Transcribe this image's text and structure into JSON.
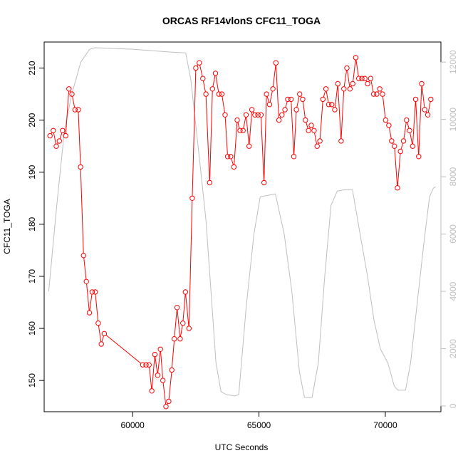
{
  "chart_data": {
    "type": "line",
    "title": "ORCAS RF14vlonS CFC11_TOGA",
    "xlabel": "UTC Seconds",
    "ylabel": "CFC11_TOGA",
    "ylabel_right": "",
    "xlim": [
      56500,
      72200
    ],
    "ylim": [
      144,
      215
    ],
    "ylim_right": [
      -200,
      12700
    ],
    "x_ticks": [
      60000,
      65000,
      70000
    ],
    "y_ticks": [
      150,
      160,
      170,
      180,
      190,
      200,
      210
    ],
    "y_ticks_right": [
      0,
      2000,
      4000,
      6000,
      8000,
      10000,
      12000
    ],
    "colors": {
      "series": "#ff0000",
      "altitude": "#bebebe",
      "axis": "#000000"
    },
    "series": [
      {
        "values": [
          [
            56730,
            197
          ],
          [
            56860,
            198
          ],
          [
            56980,
            195
          ],
          [
            57100,
            196
          ],
          [
            57230,
            198
          ],
          [
            57350,
            197
          ],
          [
            57480,
            206
          ],
          [
            57600,
            205
          ],
          [
            57720,
            202
          ],
          [
            57850,
            202
          ],
          [
            57940,
            191
          ],
          [
            58060,
            174
          ],
          [
            58170,
            169
          ],
          [
            58290,
            163
          ],
          [
            58400,
            167
          ],
          [
            58520,
            167
          ],
          [
            58640,
            161
          ],
          [
            58760,
            157
          ],
          [
            58880,
            159
          ],
          [
            60400,
            153
          ],
          [
            60530,
            153
          ],
          [
            60650,
            153
          ],
          [
            60760,
            148
          ],
          [
            60880,
            155
          ],
          [
            60990,
            151
          ],
          [
            61100,
            156
          ],
          [
            61200,
            150
          ],
          [
            61320,
            145
          ],
          [
            61430,
            146
          ],
          [
            61550,
            152
          ],
          [
            61650,
            158
          ],
          [
            61760,
            164
          ],
          [
            61880,
            158
          ],
          [
            61990,
            161
          ],
          [
            62090,
            167
          ],
          [
            62230,
            160
          ],
          [
            62360,
            185
          ],
          [
            62500,
            210
          ],
          [
            62640,
            211
          ],
          [
            62780,
            208
          ],
          [
            62900,
            205
          ],
          [
            63050,
            188
          ],
          [
            63160,
            206
          ],
          [
            63280,
            209
          ],
          [
            63410,
            205
          ],
          [
            63530,
            205
          ],
          [
            63660,
            201
          ],
          [
            63760,
            193
          ],
          [
            63880,
            193
          ],
          [
            64010,
            191
          ],
          [
            64140,
            200
          ],
          [
            64250,
            198
          ],
          [
            64370,
            198
          ],
          [
            64490,
            201
          ],
          [
            64610,
            195
          ],
          [
            64720,
            202
          ],
          [
            64840,
            201
          ],
          [
            64960,
            201
          ],
          [
            65080,
            201
          ],
          [
            65200,
            188
          ],
          [
            65300,
            205
          ],
          [
            65420,
            203
          ],
          [
            65550,
            206
          ],
          [
            65670,
            211
          ],
          [
            65790,
            200
          ],
          [
            65910,
            201
          ],
          [
            66030,
            202
          ],
          [
            66140,
            204
          ],
          [
            66270,
            204
          ],
          [
            66380,
            193
          ],
          [
            66480,
            202
          ],
          [
            66610,
            205
          ],
          [
            66730,
            204
          ],
          [
            66840,
            200
          ],
          [
            66960,
            198
          ],
          [
            67070,
            199
          ],
          [
            67180,
            198
          ],
          [
            67300,
            195
          ],
          [
            67410,
            196
          ],
          [
            67530,
            204
          ],
          [
            67650,
            206
          ],
          [
            67760,
            203
          ],
          [
            67880,
            203
          ],
          [
            68000,
            202
          ],
          [
            68120,
            207
          ],
          [
            68250,
            196
          ],
          [
            68360,
            206
          ],
          [
            68480,
            210
          ],
          [
            68600,
            206
          ],
          [
            68710,
            207
          ],
          [
            68830,
            212
          ],
          [
            68950,
            208
          ],
          [
            69070,
            208
          ],
          [
            69190,
            208
          ],
          [
            69300,
            207
          ],
          [
            69420,
            208
          ],
          [
            69540,
            205
          ],
          [
            69660,
            205
          ],
          [
            69780,
            206
          ],
          [
            69890,
            205
          ],
          [
            70010,
            200
          ],
          [
            70140,
            199
          ],
          [
            70250,
            196
          ],
          [
            70360,
            195
          ],
          [
            70480,
            187
          ],
          [
            70600,
            194
          ],
          [
            70720,
            196
          ],
          [
            70840,
            200
          ],
          [
            70960,
            198
          ],
          [
            71080,
            195
          ],
          [
            71200,
            204
          ],
          [
            71320,
            193
          ],
          [
            71440,
            207
          ],
          [
            71560,
            202
          ],
          [
            71680,
            201
          ],
          [
            71800,
            204
          ]
        ]
      },
      {
        "axis": "right",
        "values": [
          [
            56680,
            4000
          ],
          [
            57000,
            7000
          ],
          [
            57300,
            9600
          ],
          [
            57600,
            10900
          ],
          [
            57950,
            12000
          ],
          [
            58300,
            12450
          ],
          [
            58500,
            12500
          ],
          [
            60000,
            12450
          ],
          [
            61500,
            12350
          ],
          [
            62100,
            12320
          ],
          [
            62300,
            11400
          ],
          [
            62600,
            9000
          ],
          [
            62900,
            6500
          ],
          [
            63100,
            4000
          ],
          [
            63300,
            1500
          ],
          [
            63500,
            500
          ],
          [
            63700,
            400
          ],
          [
            64050,
            350
          ],
          [
            64200,
            400
          ],
          [
            64500,
            3500
          ],
          [
            64800,
            6000
          ],
          [
            65050,
            7300
          ],
          [
            65350,
            7350
          ],
          [
            65650,
            7400
          ],
          [
            66000,
            6000
          ],
          [
            66300,
            4000
          ],
          [
            66600,
            1200
          ],
          [
            66800,
            300
          ],
          [
            67100,
            300
          ],
          [
            67350,
            1500
          ],
          [
            67600,
            4500
          ],
          [
            67850,
            7000
          ],
          [
            68100,
            7500
          ],
          [
            68400,
            7550
          ],
          [
            68700,
            7550
          ],
          [
            69000,
            6000
          ],
          [
            69300,
            4500
          ],
          [
            69550,
            3000
          ],
          [
            69800,
            2000
          ],
          [
            70100,
            1500
          ],
          [
            70350,
            700
          ],
          [
            70500,
            550
          ],
          [
            70800,
            550
          ],
          [
            71000,
            1500
          ],
          [
            71250,
            3500
          ],
          [
            71500,
            5500
          ],
          [
            71750,
            7300
          ],
          [
            71900,
            7600
          ],
          [
            72000,
            7650
          ]
        ]
      }
    ]
  }
}
